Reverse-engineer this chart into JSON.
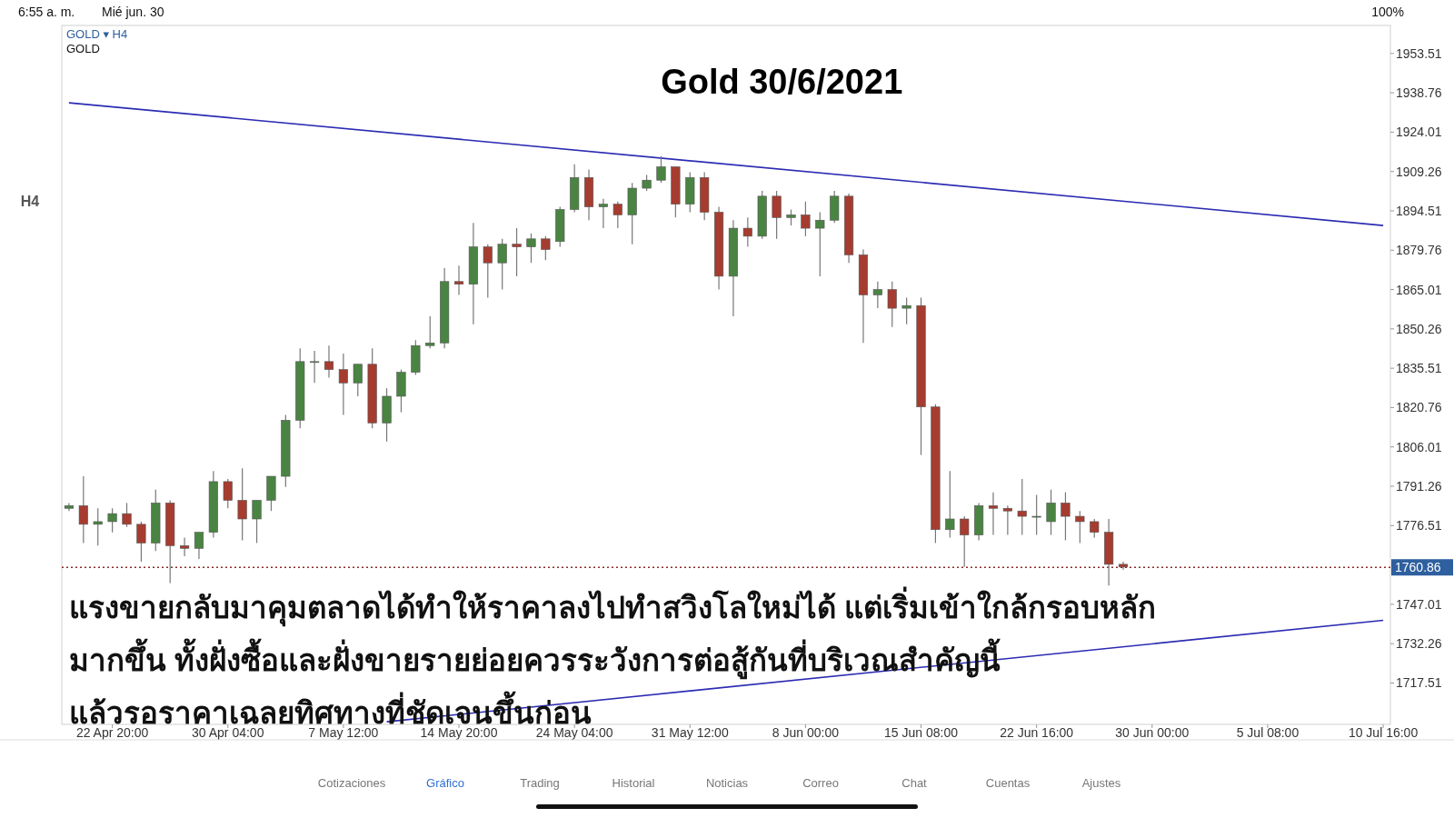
{
  "chart_data": {
    "type": "candlestick",
    "title": "Gold 30/6/2021",
    "categories": [
      null,
      null,
      null,
      "22 Apr 20:00",
      null,
      null,
      null,
      null,
      null,
      null,
      null,
      "30 Apr 04:00",
      null,
      null,
      null,
      null,
      null,
      null,
      null,
      "7 May 12:00",
      null,
      null,
      null,
      null,
      null,
      null,
      null,
      "14 May 20:00",
      null,
      null,
      null,
      null,
      null,
      null,
      null,
      "24 May 04:00",
      null,
      null,
      null,
      null,
      null,
      null,
      null,
      "31 May 12:00",
      null,
      null,
      null,
      null,
      null,
      null,
      null,
      "8 Jun 00:00",
      null,
      null,
      null,
      null,
      null,
      null,
      null,
      "15 Jun 08:00",
      null,
      null,
      null,
      null,
      null,
      null,
      null,
      "22 Jun 16:00",
      null,
      null,
      null,
      null,
      null,
      null,
      null,
      "30 Jun 00:00",
      null,
      null,
      null,
      null,
      null,
      null,
      null,
      "5 Jul 08:00",
      null,
      null,
      null,
      null,
      null,
      null,
      null,
      "10 Jul 16:00"
    ],
    "ohlc": [
      [
        1783,
        1785,
        1782,
        1784
      ],
      [
        1784,
        1795,
        1770,
        1777
      ],
      [
        1777,
        1783,
        1769,
        1778
      ],
      [
        1778,
        1783,
        1774,
        1781
      ],
      [
        1781,
        1785,
        1776,
        1777
      ],
      [
        1777,
        1778,
        1763,
        1770
      ],
      [
        1770,
        1790,
        1767,
        1785
      ],
      [
        1785,
        1786,
        1755,
        1769
      ],
      [
        1769,
        1772,
        1765,
        1768
      ],
      [
        1768,
        1774,
        1764,
        1774
      ],
      [
        1774,
        1797,
        1772,
        1793
      ],
      [
        1793,
        1794,
        1783,
        1786
      ],
      [
        1786,
        1798,
        1771,
        1779
      ],
      [
        1779,
        1786,
        1770,
        1786
      ],
      [
        1786,
        1795,
        1782,
        1795
      ],
      [
        1795,
        1818,
        1791,
        1816
      ],
      [
        1816,
        1843,
        1813,
        1838
      ],
      [
        1838,
        1842,
        1830,
        1838
      ],
      [
        1838,
        1844,
        1832,
        1835
      ],
      [
        1835,
        1841,
        1818,
        1830
      ],
      [
        1830,
        1837,
        1825,
        1837
      ],
      [
        1837,
        1843,
        1813,
        1815
      ],
      [
        1815,
        1828,
        1808,
        1825
      ],
      [
        1825,
        1835,
        1819,
        1834
      ],
      [
        1834,
        1846,
        1833,
        1844
      ],
      [
        1844,
        1855,
        1843,
        1845
      ],
      [
        1845,
        1873,
        1843,
        1868
      ],
      [
        1868,
        1874,
        1863,
        1867
      ],
      [
        1867,
        1890,
        1852,
        1881
      ],
      [
        1881,
        1882,
        1862,
        1875
      ],
      [
        1875,
        1884,
        1865,
        1882
      ],
      [
        1882,
        1888,
        1870,
        1881
      ],
      [
        1881,
        1886,
        1875,
        1884
      ],
      [
        1884,
        1885,
        1876,
        1880
      ],
      [
        1883,
        1896,
        1881,
        1895
      ],
      [
        1895,
        1912,
        1894,
        1907
      ],
      [
        1907,
        1910,
        1891,
        1896
      ],
      [
        1896,
        1899,
        1888,
        1897
      ],
      [
        1897,
        1898,
        1888,
        1893
      ],
      [
        1893,
        1905,
        1882,
        1903
      ],
      [
        1903,
        1908,
        1902,
        1906
      ],
      [
        1906,
        1915,
        1905,
        1911
      ],
      [
        1911,
        1911,
        1892,
        1897
      ],
      [
        1897,
        1909,
        1894,
        1907
      ],
      [
        1907,
        1909,
        1891,
        1894
      ],
      [
        1894,
        1896,
        1865,
        1870
      ],
      [
        1870,
        1891,
        1855,
        1888
      ],
      [
        1888,
        1892,
        1881,
        1885
      ],
      [
        1885,
        1902,
        1884,
        1900
      ],
      [
        1900,
        1902,
        1884,
        1892
      ],
      [
        1892,
        1895,
        1889,
        1893
      ],
      [
        1893,
        1898,
        1885,
        1888
      ],
      [
        1888,
        1894,
        1870,
        1891
      ],
      [
        1891,
        1902,
        1890,
        1900
      ],
      [
        1900,
        1901,
        1875,
        1878
      ],
      [
        1878,
        1880,
        1845,
        1863
      ],
      [
        1863,
        1868,
        1858,
        1865
      ],
      [
        1865,
        1868,
        1851,
        1858
      ],
      [
        1858,
        1862,
        1852,
        1859
      ],
      [
        1859,
        1862,
        1803,
        1821
      ],
      [
        1821,
        1822,
        1770,
        1775
      ],
      [
        1775,
        1797,
        1772,
        1779
      ],
      [
        1779,
        1780,
        1761,
        1773
      ],
      [
        1773,
        1785,
        1771,
        1784
      ],
      [
        1784,
        1789,
        1773,
        1783
      ],
      [
        1783,
        1784,
        1773,
        1782
      ],
      [
        1782,
        1794,
        1773,
        1780
      ],
      [
        1780,
        1788,
        1773,
        1780
      ],
      [
        1778,
        1790,
        1773,
        1785
      ],
      [
        1785,
        1789,
        1771,
        1780
      ],
      [
        1780,
        1782,
        1770,
        1778
      ],
      [
        1778,
        1779,
        1772,
        1774
      ],
      [
        1774,
        1779,
        1754,
        1762
      ],
      [
        1762,
        1763,
        1760,
        1761
      ],
      null,
      null,
      null,
      null,
      null,
      null,
      null,
      null,
      null,
      null,
      null,
      null,
      null,
      null,
      null,
      null,
      null,
      null
    ],
    "series": [
      {
        "type": "line",
        "color": "#2b2bb3",
        "values": [
          1935,
          null,
          null,
          null,
          null,
          null,
          null,
          null,
          null,
          null,
          null,
          null,
          null,
          null,
          null,
          null,
          null,
          null,
          null,
          null,
          null,
          null,
          null,
          null,
          null,
          null,
          null,
          null,
          null,
          null,
          null,
          null,
          null,
          null,
          null,
          null,
          null,
          null,
          null,
          null,
          null,
          null,
          null,
          null,
          null,
          null,
          null,
          null,
          null,
          null,
          null,
          null,
          null,
          null,
          null,
          null,
          null,
          null,
          null,
          null,
          null,
          null,
          null,
          null,
          null,
          null,
          null,
          null,
          null,
          null,
          null,
          null,
          null,
          null,
          null,
          null,
          null,
          null,
          null,
          null,
          null,
          null,
          null,
          null,
          null,
          null,
          null,
          null,
          null,
          null,
          null,
          1889
        ]
      },
      {
        "type": "line",
        "color": "#2b2bb3",
        "values": [
          null,
          null,
          null,
          null,
          null,
          null,
          null,
          null,
          null,
          null,
          null,
          null,
          null,
          null,
          null,
          null,
          null,
          null,
          null,
          null,
          null,
          null,
          1703,
          null,
          null,
          null,
          null,
          null,
          null,
          null,
          null,
          null,
          null,
          null,
          null,
          null,
          null,
          null,
          null,
          null,
          null,
          null,
          null,
          null,
          null,
          null,
          null,
          null,
          null,
          null,
          null,
          null,
          null,
          null,
          null,
          null,
          null,
          null,
          null,
          null,
          null,
          null,
          null,
          null,
          null,
          null,
          null,
          null,
          null,
          null,
          null,
          null,
          null,
          null,
          null,
          null,
          null,
          null,
          null,
          null,
          null,
          null,
          null,
          null,
          null,
          null,
          null,
          null,
          null,
          null,
          null,
          1741
        ]
      }
    ],
    "ylim": [
      1702,
      1964
    ],
    "yticks": [
      1717.51,
      1732.26,
      1747.01,
      1776.51,
      1791.26,
      1806.01,
      1820.76,
      1835.51,
      1850.26,
      1865.01,
      1879.76,
      1894.51,
      1909.26,
      1924.01,
      1938.76,
      1953.51
    ],
    "ref_lines": [
      {
        "axis": "y",
        "value": 1760.86,
        "label": "1760.86",
        "color": "#8b2a2a",
        "line_style": "dotted"
      }
    ],
    "grid": false,
    "annotations": [
      "6:55 a. m.",
      "Mié jun. 30",
      "100%",
      "GOLD ▾ H4",
      "GOLD",
      "H4",
      "แรงขายกลับมาคุมตลาดได้ทำให้ราคาลงไปทำสวิงโลใหม่ได้ แต่เริ่มเข้าใกล้กรอบหลัก\nมากขึ้น ทั้งฝั่งซื้อและฝั่งขายรายย่อยควรระวังการต่อสู้กันที่บริเวณสำคัญนี้\nแล้วรอราคาเฉลยทิศทางที่ชัดเจนขึ้นก่อน",
      "Cotizaciones",
      "Gráfico",
      "Trading",
      "Historial",
      "Noticias",
      "Correo",
      "Chat",
      "Cuentas",
      "Ajustes"
    ]
  }
}
